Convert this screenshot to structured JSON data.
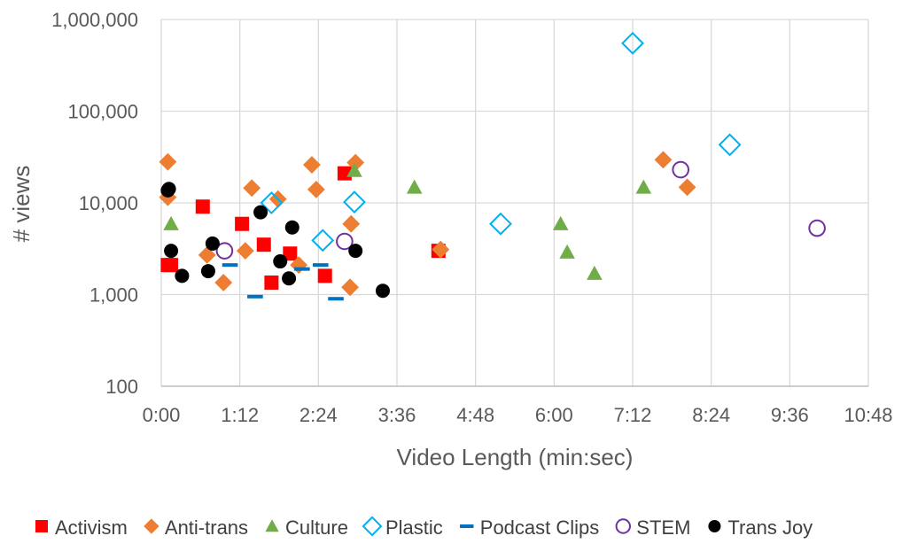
{
  "chart_data": {
    "type": "scatter",
    "title": "",
    "xlabel": "Video Length (min:sec)",
    "ylabel": "# views",
    "x_unit": "seconds",
    "xlim": [
      0,
      648
    ],
    "ylim": [
      100,
      1000000
    ],
    "y_scale": "log",
    "grid": true,
    "legend_position": "bottom",
    "x_ticks": [
      {
        "value": 0,
        "label": "0:00"
      },
      {
        "value": 72,
        "label": "1:12"
      },
      {
        "value": 144,
        "label": "2:24"
      },
      {
        "value": 216,
        "label": "3:36"
      },
      {
        "value": 288,
        "label": "4:48"
      },
      {
        "value": 360,
        "label": "6:00"
      },
      {
        "value": 432,
        "label": "7:12"
      },
      {
        "value": 504,
        "label": "8:24"
      },
      {
        "value": 576,
        "label": "9:36"
      },
      {
        "value": 648,
        "label": "10:48"
      }
    ],
    "y_ticks": [
      {
        "value": 100,
        "label": "100"
      },
      {
        "value": 1000,
        "label": "1,000"
      },
      {
        "value": 10000,
        "label": "10,000"
      },
      {
        "value": 100000,
        "label": "100,000"
      },
      {
        "value": 1000000,
        "label": "1,000,000"
      }
    ],
    "series": [
      {
        "name": "Activism",
        "marker": "square",
        "color": "#FF0000",
        "points": [
          [
            6,
            2100
          ],
          [
            9,
            2100
          ],
          [
            38,
            9100
          ],
          [
            74,
            5900
          ],
          [
            94,
            3500
          ],
          [
            101,
            1350
          ],
          [
            118,
            2800
          ],
          [
            150,
            1600
          ],
          [
            168,
            21000
          ],
          [
            254,
            3000
          ]
        ]
      },
      {
        "name": "Anti-trans",
        "marker": "diamond",
        "color": "#ED7D31",
        "points": [
          [
            6,
            28000
          ],
          [
            6,
            11500
          ],
          [
            42,
            2700
          ],
          [
            57,
            1350
          ],
          [
            77,
            3000
          ],
          [
            83,
            14500
          ],
          [
            107,
            11000
          ],
          [
            126,
            2100
          ],
          [
            138,
            26000
          ],
          [
            142,
            14000
          ],
          [
            173,
            1200
          ],
          [
            174,
            5900
          ],
          [
            178,
            27500
          ],
          [
            256,
            3100
          ],
          [
            460,
            29500
          ],
          [
            482,
            14800
          ]
        ]
      },
      {
        "name": "Culture",
        "marker": "triangle",
        "color": "#70AD47",
        "points": [
          [
            9,
            5900
          ],
          [
            177,
            22500
          ],
          [
            232,
            14800
          ],
          [
            366,
            5900
          ],
          [
            372,
            2900
          ],
          [
            397,
            1700
          ],
          [
            442,
            14800
          ]
        ]
      },
      {
        "name": "Plastic",
        "marker": "open-diamond",
        "color": "#00B0F0",
        "points": [
          [
            101,
            10000
          ],
          [
            148,
            3900
          ],
          [
            177,
            10200
          ],
          [
            311,
            5900
          ],
          [
            432,
            550000
          ],
          [
            521,
            43000
          ]
        ]
      },
      {
        "name": "Podcast Clips",
        "marker": "dash",
        "color": "#0070C0",
        "points": [
          [
            63,
            2100
          ],
          [
            86,
            950
          ],
          [
            129,
            1900
          ],
          [
            146,
            2100
          ],
          [
            160,
            900
          ]
        ]
      },
      {
        "name": "STEM",
        "marker": "open-circle",
        "color": "#7030A0",
        "points": [
          [
            58,
            3000
          ],
          [
            168,
            3800
          ],
          [
            476,
            23000
          ],
          [
            601,
            5300
          ]
        ]
      },
      {
        "name": "Trans Joy",
        "marker": "circle",
        "color": "#000000",
        "points": [
          [
            6,
            13700
          ],
          [
            7,
            14200
          ],
          [
            9,
            3000
          ],
          [
            19,
            1600
          ],
          [
            43,
            1800
          ],
          [
            47,
            3600
          ],
          [
            91,
            7900
          ],
          [
            109,
            2300
          ],
          [
            117,
            1500
          ],
          [
            120,
            5400
          ],
          [
            178,
            3000
          ],
          [
            203,
            1100
          ]
        ]
      }
    ]
  }
}
